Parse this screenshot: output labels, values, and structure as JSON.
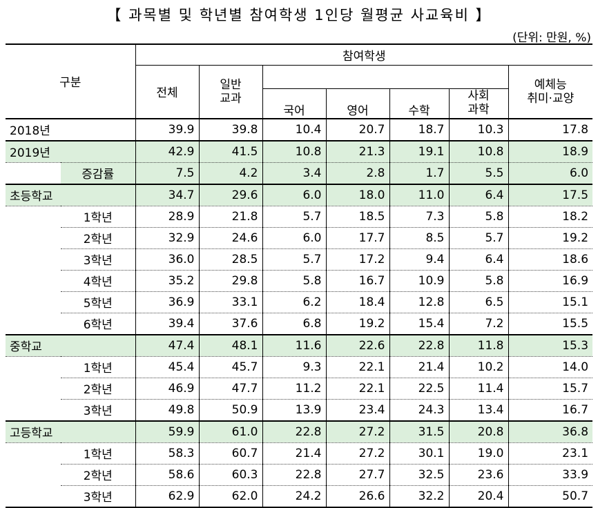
{
  "title": "【 과목별 및 학년별 참여학생 1인당 월평균 사교육비 】",
  "unit": "(단위: 만원, %)",
  "header": {
    "group": "구분",
    "participants": "참여학생",
    "total": "전체",
    "general_line1": "일반",
    "general_line2": "교과",
    "korean": "국어",
    "english": "영어",
    "math": "수학",
    "social_line1": "사회",
    "social_line2": "과학",
    "arts_line1": "예체능",
    "arts_line2": "취미·교양"
  },
  "rows": [
    {
      "label": "2018년",
      "values": [
        "39.9",
        "39.8",
        "10.4",
        "20.7",
        "18.7",
        "10.3",
        "17.8"
      ]
    },
    {
      "label": "2019년",
      "values": [
        "42.9",
        "41.5",
        "10.8",
        "21.3",
        "19.1",
        "10.8",
        "18.9"
      ]
    },
    {
      "label": "증감률",
      "values": [
        "7.5",
        "4.2",
        "3.4",
        "2.8",
        "1.7",
        "5.5",
        "6.0"
      ]
    },
    {
      "label": "초등학교",
      "values": [
        "34.7",
        "29.6",
        "6.0",
        "18.0",
        "11.0",
        "6.4",
        "17.5"
      ]
    },
    {
      "label": "1학년",
      "values": [
        "28.9",
        "21.8",
        "5.7",
        "18.5",
        "7.3",
        "5.8",
        "18.2"
      ]
    },
    {
      "label": "2학년",
      "values": [
        "32.9",
        "24.6",
        "6.0",
        "17.7",
        "8.5",
        "5.7",
        "19.2"
      ]
    },
    {
      "label": "3학년",
      "values": [
        "36.0",
        "28.5",
        "5.7",
        "17.2",
        "9.4",
        "6.4",
        "18.6"
      ]
    },
    {
      "label": "4학년",
      "values": [
        "35.2",
        "29.8",
        "5.8",
        "16.7",
        "10.9",
        "5.8",
        "16.9"
      ]
    },
    {
      "label": "5학년",
      "values": [
        "36.9",
        "33.1",
        "6.2",
        "18.4",
        "12.8",
        "6.5",
        "15.1"
      ]
    },
    {
      "label": "6학년",
      "values": [
        "39.4",
        "37.6",
        "6.8",
        "19.2",
        "15.4",
        "7.2",
        "15.5"
      ]
    },
    {
      "label": "중학교",
      "values": [
        "47.4",
        "48.1",
        "11.6",
        "22.6",
        "22.8",
        "11.8",
        "15.3"
      ]
    },
    {
      "label": "1학년",
      "values": [
        "45.4",
        "45.7",
        "9.3",
        "22.1",
        "21.4",
        "10.2",
        "14.0"
      ]
    },
    {
      "label": "2학년",
      "values": [
        "46.9",
        "47.7",
        "11.2",
        "22.1",
        "22.5",
        "11.4",
        "15.7"
      ]
    },
    {
      "label": "3학년",
      "values": [
        "49.8",
        "50.9",
        "13.9",
        "23.4",
        "24.3",
        "13.4",
        "16.7"
      ]
    },
    {
      "label": "고등학교",
      "values": [
        "59.9",
        "61.0",
        "22.8",
        "27.2",
        "31.5",
        "20.8",
        "36.8"
      ]
    },
    {
      "label": "1학년",
      "values": [
        "58.3",
        "60.7",
        "21.4",
        "27.2",
        "30.1",
        "19.0",
        "23.1"
      ]
    },
    {
      "label": "2학년",
      "values": [
        "58.6",
        "60.3",
        "22.8",
        "27.7",
        "32.5",
        "23.6",
        "33.9"
      ]
    },
    {
      "label": "3학년",
      "values": [
        "62.9",
        "62.0",
        "24.2",
        "26.6",
        "32.2",
        "20.4",
        "50.7"
      ]
    }
  ],
  "colors": {
    "highlight": "#dcefdc"
  }
}
